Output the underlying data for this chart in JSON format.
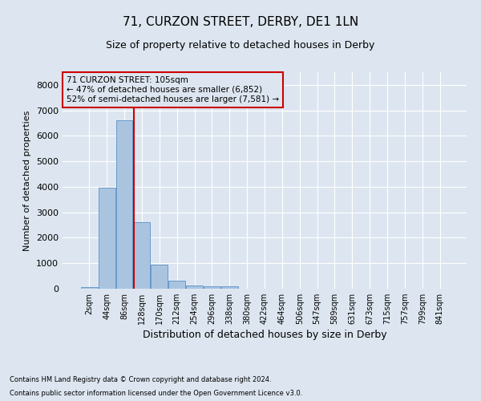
{
  "title_line1": "71, CURZON STREET, DERBY, DE1 1LN",
  "title_line2": "Size of property relative to detached houses in Derby",
  "xlabel": "Distribution of detached houses by size in Derby",
  "ylabel": "Number of detached properties",
  "footnote1": "Contains HM Land Registry data © Crown copyright and database right 2024.",
  "footnote2": "Contains public sector information licensed under the Open Government Licence v3.0.",
  "annotation_line1": "71 CURZON STREET: 105sqm",
  "annotation_line2": "← 47% of detached houses are smaller (6,852)",
  "annotation_line3": "52% of semi-detached houses are larger (7,581) →",
  "bar_categories": [
    "2sqm",
    "44sqm",
    "86sqm",
    "128sqm",
    "170sqm",
    "212sqm",
    "254sqm",
    "296sqm",
    "338sqm",
    "380sqm",
    "422sqm",
    "464sqm",
    "506sqm",
    "547sqm",
    "589sqm",
    "631sqm",
    "673sqm",
    "715sqm",
    "757sqm",
    "799sqm",
    "841sqm"
  ],
  "bar_values": [
    70,
    3980,
    6600,
    2620,
    960,
    310,
    125,
    100,
    80,
    0,
    0,
    0,
    0,
    0,
    0,
    0,
    0,
    0,
    0,
    0,
    0
  ],
  "bar_color": "#aac4e0",
  "bar_edge_color": "#6699cc",
  "vline_color": "#cc0000",
  "vline_x": 2.55,
  "ylim": [
    0,
    8500
  ],
  "yticks": [
    0,
    1000,
    2000,
    3000,
    4000,
    5000,
    6000,
    7000,
    8000
  ],
  "background_color": "#dde6f0",
  "plot_bg_color": "#dde6f0",
  "grid_color": "#ffffff",
  "annotation_box_edgecolor": "#cc0000",
  "figsize": [
    6.0,
    5.0
  ],
  "dpi": 100,
  "title1_fontsize": 11,
  "title2_fontsize": 9,
  "ylabel_fontsize": 8,
  "xlabel_fontsize": 9,
  "tick_fontsize": 7,
  "footnote_fontsize": 6,
  "annot_fontsize": 7.5
}
